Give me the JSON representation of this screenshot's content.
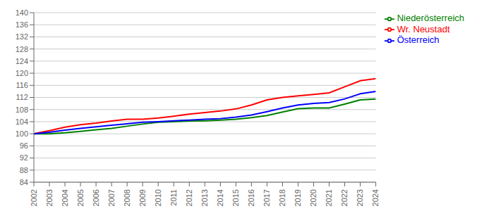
{
  "chart_data": {
    "type": "line",
    "x": [
      2002,
      2003,
      2004,
      2005,
      2006,
      2007,
      2008,
      2009,
      2010,
      2011,
      2012,
      2013,
      2014,
      2015,
      2016,
      2017,
      2018,
      2019,
      2020,
      2021,
      2022,
      2023,
      2024
    ],
    "series": [
      {
        "name": "Wr. Neustadt",
        "color": "#ff0000",
        "values": [
          100.0,
          101.0,
          102.2,
          103.0,
          103.5,
          104.2,
          104.8,
          104.8,
          105.2,
          105.8,
          106.5,
          107.0,
          107.5,
          108.2,
          109.5,
          111.2,
          112.0,
          112.5,
          113.0,
          113.5,
          115.5,
          117.5,
          118.2
        ]
      },
      {
        "name": "Niederösterreich",
        "color": "#008000",
        "values": [
          100.0,
          100.0,
          100.3,
          100.8,
          101.3,
          101.8,
          102.5,
          103.2,
          103.8,
          104.0,
          104.2,
          104.3,
          104.5,
          104.8,
          105.3,
          106.0,
          107.2,
          108.3,
          108.5,
          108.5,
          109.8,
          111.2,
          111.5
        ]
      },
      {
        "name": "Österreich",
        "color": "#0000ff",
        "values": [
          100.0,
          100.5,
          101.2,
          101.8,
          102.3,
          102.8,
          103.3,
          103.8,
          104.0,
          104.3,
          104.5,
          104.8,
          105.0,
          105.5,
          106.2,
          107.3,
          108.5,
          109.5,
          110.0,
          110.3,
          111.5,
          113.2,
          114.0
        ]
      }
    ],
    "xlim": [
      2002,
      2024
    ],
    "xticks": [
      2002,
      2003,
      2004,
      2005,
      2006,
      2007,
      2008,
      2009,
      2010,
      2011,
      2012,
      2013,
      2014,
      2015,
      2016,
      2017,
      2018,
      2019,
      2020,
      2021,
      2022,
      2023,
      2024
    ],
    "ylim": [
      84,
      140
    ],
    "yticks": [
      84,
      88,
      92,
      96,
      100,
      104,
      108,
      112,
      116,
      120,
      124,
      128,
      132,
      136,
      140
    ],
    "grid": "y",
    "legend": "right"
  }
}
